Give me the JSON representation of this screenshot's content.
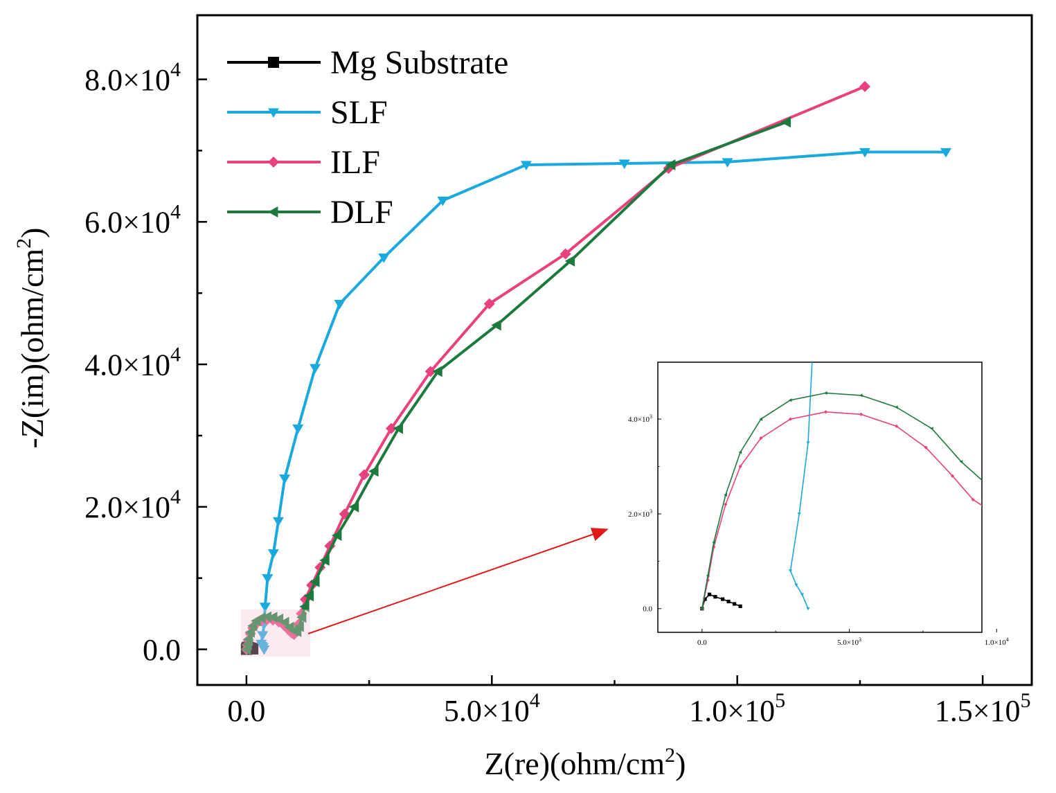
{
  "chart_data": {
    "type": "line",
    "xlabel": "Z(re)(ohm/cm2)",
    "ylabel": "-Z(im)(ohm/cm2)",
    "xlim": [
      -10000,
      160000
    ],
    "ylim": [
      -5000,
      89000
    ],
    "x_ticks": [
      {
        "value": 0,
        "label": "0.0",
        "exp": ""
      },
      {
        "value": 50000,
        "label": "5.0×10",
        "exp": "4"
      },
      {
        "value": 100000,
        "label": "1.0×10",
        "exp": "5"
      },
      {
        "value": 150000,
        "label": "1.5×10",
        "exp": "5"
      }
    ],
    "y_ticks": [
      {
        "value": 0,
        "label": "0.0",
        "exp": ""
      },
      {
        "value": 20000,
        "label": "2.0×10",
        "exp": "4"
      },
      {
        "value": 40000,
        "label": "4.0×10",
        "exp": "4"
      },
      {
        "value": 60000,
        "label": "6.0×10",
        "exp": "4"
      },
      {
        "value": 80000,
        "label": "8.0×10",
        "exp": "4"
      }
    ],
    "legend": {
      "position": "top-left"
    },
    "series": [
      {
        "name": "Mg Substrate",
        "color": "#000000",
        "marker": "square",
        "x": [
          0,
          100,
          250,
          450,
          700,
          900,
          1100,
          1300
        ],
        "y": [
          0,
          200,
          300,
          250,
          200,
          150,
          100,
          50
        ]
      },
      {
        "name": "SLF",
        "color": "#1aa9dd",
        "marker": "triangle-down",
        "x": [
          3600,
          3400,
          3200,
          3000,
          3300,
          3600,
          3800,
          4300,
          5500,
          6500,
          7800,
          10500,
          14000,
          19000,
          28000,
          40000,
          57000,
          77000,
          98000,
          126000,
          142500
        ],
        "y": [
          0,
          300,
          500,
          800,
          2000,
          3500,
          6000,
          10000,
          13500,
          18000,
          24000,
          31000,
          39500,
          48500,
          55000,
          63000,
          68000,
          68200,
          68400,
          69800,
          69800
        ],
        "smooth": false
      },
      {
        "name": "ILF",
        "color": "#e8417e",
        "marker": "diamond",
        "x": [
          0,
          200,
          400,
          800,
          1300,
          2000,
          3000,
          4200,
          5400,
          6600,
          7600,
          8500,
          9200,
          9700,
          10100,
          10600,
          11200,
          12000,
          13300,
          15000,
          17000,
          20000,
          24000,
          29500,
          37500,
          49500,
          65000,
          86000,
          126000
        ],
        "y": [
          0,
          600,
          1300,
          2200,
          3000,
          3600,
          4000,
          4150,
          4100,
          3850,
          3400,
          2800,
          2300,
          2100,
          2500,
          3500,
          5000,
          7000,
          9000,
          11500,
          14500,
          19000,
          24500,
          31000,
          39000,
          48500,
          55500,
          67500,
          79000
        ],
        "smooth": true
      },
      {
        "name": "DLF",
        "color": "#1c7a3c",
        "marker": "triangle-left",
        "x": [
          0,
          200,
          400,
          800,
          1300,
          2000,
          3000,
          4200,
          5400,
          6600,
          7800,
          8800,
          9700,
          10300,
          10800,
          11300,
          11900,
          12800,
          14000,
          16000,
          18500,
          22000,
          26000,
          31000,
          39000,
          51000,
          66000,
          86500,
          110000
        ],
        "y": [
          0,
          700,
          1400,
          2400,
          3300,
          4000,
          4400,
          4550,
          4500,
          4250,
          3800,
          3100,
          2600,
          2500,
          3200,
          4500,
          6000,
          7500,
          9500,
          12500,
          16000,
          20000,
          25000,
          31000,
          39000,
          45500,
          54500,
          68000,
          74000
        ],
        "smooth": true
      }
    ],
    "inset": {
      "xlim": [
        -1500,
        9500
      ],
      "ylim": [
        -500,
        5200
      ],
      "note": "zoomed high-frequency region",
      "x_ticks": [
        {
          "value": 0,
          "label": "0.0",
          "exp": ""
        },
        {
          "value": 5000,
          "label": "5.0×10",
          "exp": "3"
        },
        {
          "value": 10000,
          "label": "1.0×10",
          "exp": "4"
        }
      ],
      "y_ticks": [
        {
          "value": 0,
          "label": "0.0",
          "exp": ""
        },
        {
          "value": 2000,
          "label": "2.0×10",
          "exp": "3"
        },
        {
          "value": 4000,
          "label": "4.0×10",
          "exp": "3"
        }
      ]
    }
  }
}
